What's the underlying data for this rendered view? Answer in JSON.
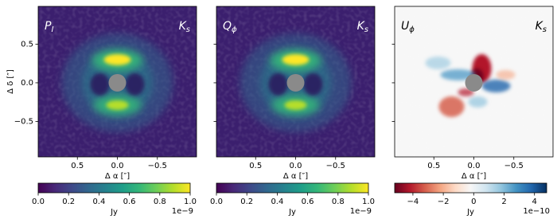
{
  "chart_data": [
    {
      "type": "image",
      "label": {
        "text": "P",
        "sub": "I"
      },
      "band": {
        "text": "K",
        "sub": "s"
      },
      "label_color": "#ffffff",
      "xlabel": "Δ α [″]",
      "ylabel": "Δ δ [″]",
      "xlim": [
        0.99,
        -0.99
      ],
      "ylim": [
        -0.96,
        0.99
      ],
      "xticks": [
        0.5,
        {
          "value": 0,
          "label": "0.0"
        },
        {
          "value": -0.5,
          "label": "−0.5"
        }
      ],
      "yticks": [
        0.5,
        {
          "value": 0,
          "label": "0.0"
        },
        {
          "value": -0.5,
          "label": "−0.5"
        }
      ],
      "colorbar": {
        "colormap": "viridis",
        "lim": [
          0,
          1
        ],
        "ticks": [
          {
            "value": 0,
            "label": "0.0"
          },
          0.2,
          0.4,
          0.6,
          0.8,
          {
            "value": 1,
            "label": "1.0"
          }
        ],
        "label": "Jy",
        "offset": "1e−9"
      }
    },
    {
      "type": "image",
      "label": {
        "text": "Q",
        "sub": "ϕ"
      },
      "band": {
        "text": "K",
        "sub": "s"
      },
      "label_color": "#ffffff",
      "xlabel": "Δ α [″]",
      "xlim": [
        0.99,
        -0.99
      ],
      "ylim": [
        -0.96,
        0.99
      ],
      "xticks": [
        0.5,
        {
          "value": 0,
          "label": "0.0"
        },
        {
          "value": -0.5,
          "label": "−0.5"
        }
      ],
      "yticks": [
        0.5,
        0,
        -0.5
      ],
      "colorbar": {
        "colormap": "viridis",
        "lim": [
          0,
          1
        ],
        "ticks": [
          {
            "value": 0,
            "label": "0.0"
          },
          0.2,
          0.4,
          0.6,
          0.8,
          {
            "value": 1,
            "label": "1.0"
          }
        ],
        "label": "Jy",
        "offset": "1e−9"
      }
    },
    {
      "type": "image",
      "label": {
        "text": "U",
        "sub": "ϕ"
      },
      "band": {
        "text": "K",
        "sub": "s"
      },
      "label_color": "#000000",
      "xlabel": "Δ α [″]",
      "xlim": [
        0.99,
        -0.99
      ],
      "ylim": [
        -0.96,
        0.99
      ],
      "xticks": [
        0.5,
        {
          "value": 0,
          "label": "0.0"
        },
        {
          "value": -0.5,
          "label": "−0.5"
        }
      ],
      "yticks": [
        0.5,
        0,
        -0.5
      ],
      "colorbar": {
        "colormap": "RdBu",
        "lim": [
          -5.2,
          4.8
        ],
        "ticks": [
          {
            "value": -4,
            "label": "−4"
          },
          {
            "value": -2,
            "label": "−2"
          },
          0,
          2,
          4
        ],
        "label": "Jy",
        "offset": "1e−10"
      }
    }
  ]
}
